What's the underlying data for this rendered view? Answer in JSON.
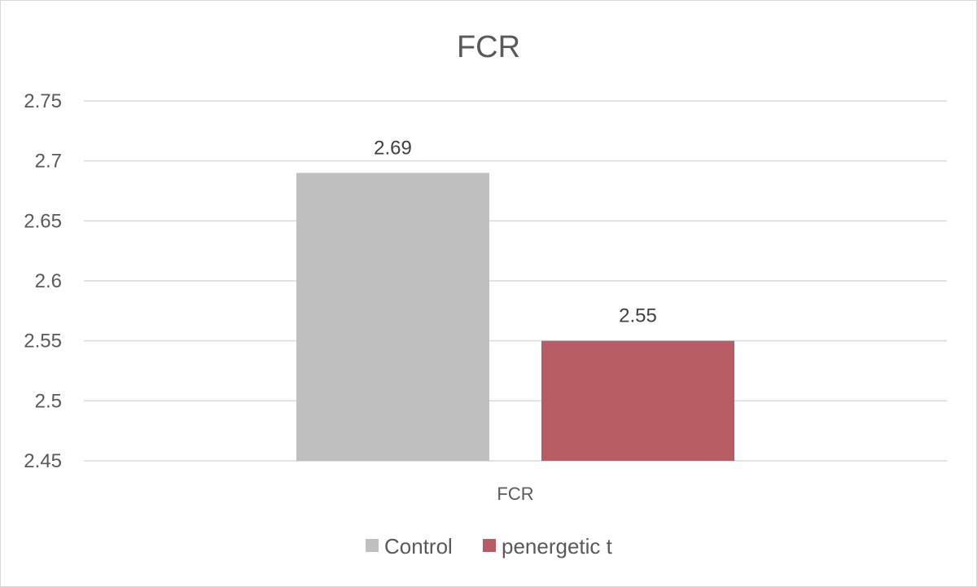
{
  "chart_data": {
    "type": "bar",
    "title": "FCR",
    "categories": [
      "FCR"
    ],
    "series": [
      {
        "name": "Control",
        "values": [
          2.69
        ],
        "color": "#bfbfbf"
      },
      {
        "name": "penergetic t",
        "values": [
          2.55
        ],
        "color": "#b85c64"
      }
    ],
    "data_labels": [
      "2.69",
      "2.55"
    ],
    "ylim": [
      2.45,
      2.75
    ],
    "yticks": [
      2.45,
      2.5,
      2.55,
      2.6,
      2.65,
      2.7,
      2.75
    ],
    "ytick_labels": [
      "2.45",
      "2.5",
      "2.55",
      "2.6",
      "2.65",
      "2.7",
      "2.75"
    ],
    "grid": true,
    "gridline_color": "#d9d9d9",
    "legend_position": "bottom",
    "xlabel": "",
    "ylabel": ""
  }
}
